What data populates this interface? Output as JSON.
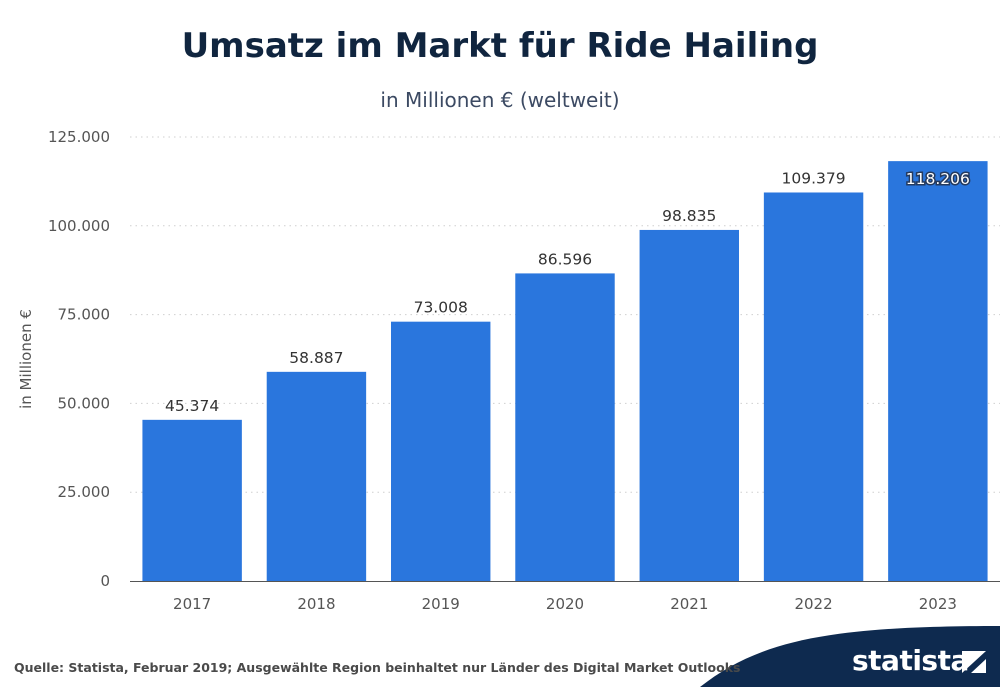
{
  "header": {
    "title": "Umsatz im Markt für Ride Hailing",
    "subtitle": "in Millionen € (weltweit)"
  },
  "chart_data": {
    "type": "bar",
    "title": "Umsatz im Markt für Ride Hailing",
    "subtitle": "in Millionen € (weltweit)",
    "xlabel": "",
    "ylabel": "in Millionen €",
    "categories": [
      "2017",
      "2018",
      "2019",
      "2020",
      "2021",
      "2022",
      "2023"
    ],
    "values": [
      45374,
      58887,
      73008,
      86596,
      98835,
      109379,
      118206
    ],
    "value_labels": [
      "45.374",
      "58.887",
      "73.008",
      "86.596",
      "98.835",
      "109.379",
      "118.206"
    ],
    "ylim": [
      0,
      125000
    ],
    "yticks": [
      0,
      25000,
      50000,
      75000,
      100000,
      125000
    ],
    "ytick_labels": [
      "0",
      "25.000",
      "50.000",
      "75.000",
      "100.000",
      "125.000"
    ],
    "grid": "horizontal dotted",
    "bar_color": "#2a76dd"
  },
  "footer": {
    "source": "Quelle: Statista, Februar 2019; Ausgewählte Region beinhaltet nur Länder des Digital Market Outlooks",
    "logo_text": "statista",
    "logo_icon": "statista-logo-icon",
    "band_color": "#0e2a4f"
  }
}
